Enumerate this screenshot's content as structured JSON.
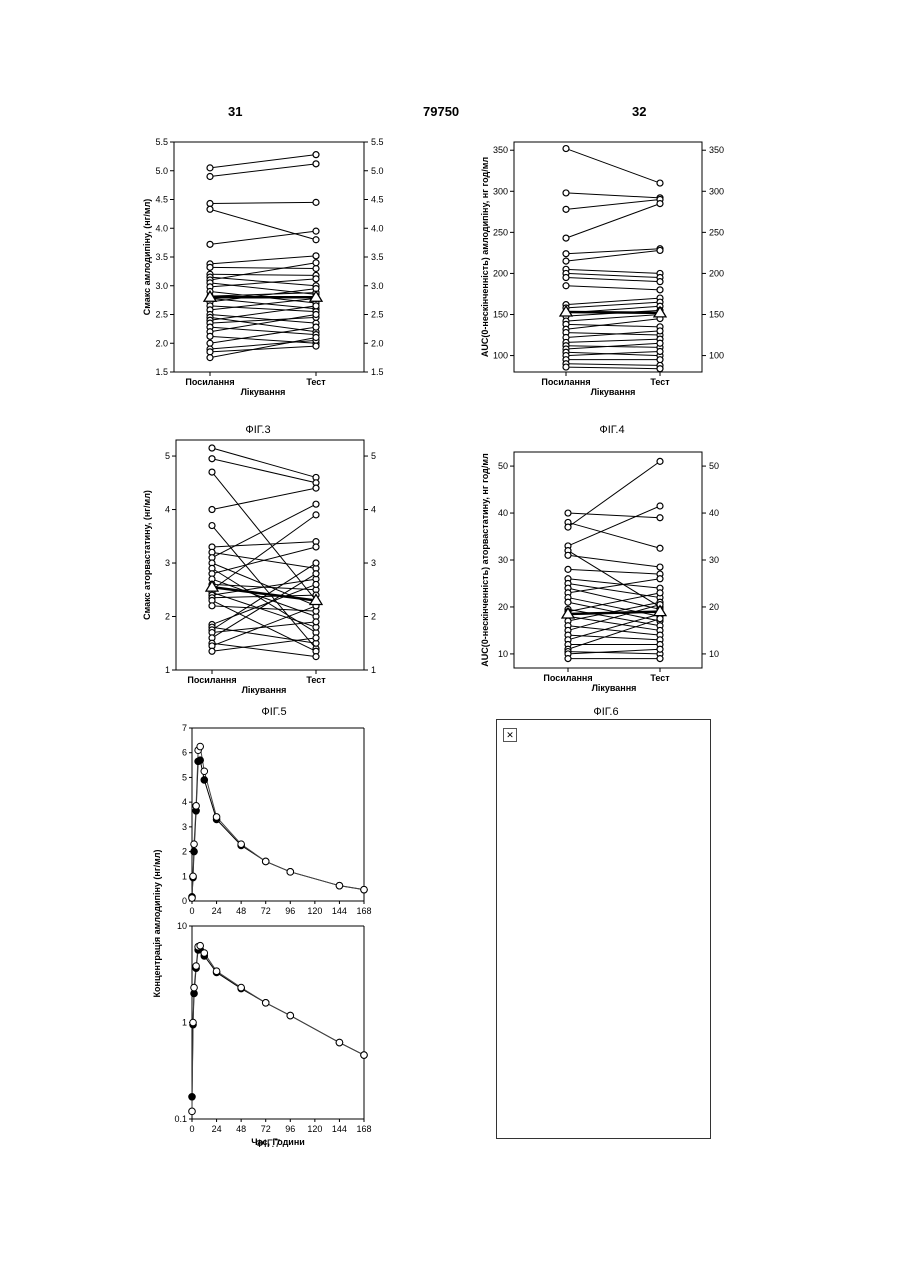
{
  "page_header": {
    "left_page": "31",
    "patent_number": "79750",
    "right_page": "32"
  },
  "chart_data": [
    {
      "type": "line",
      "figure_caption": "ФІГ.3",
      "ylabel": "Смакс амлодипіну, (нг/мл)",
      "xlabel": "Лікування",
      "categories": [
        "Посилання",
        "Тест"
      ],
      "ylim": [
        1.5,
        5.5
      ],
      "yticks": [
        "1.5",
        "2.0",
        "2.5",
        "3.0",
        "3.5",
        "4.0",
        "4.5",
        "5.0",
        "5.5"
      ],
      "ytick_values": [
        1.5,
        2.0,
        2.5,
        3.0,
        3.5,
        4.0,
        4.5,
        5.0,
        5.5
      ],
      "subjects": [
        [
          5.05,
          5.28
        ],
        [
          4.9,
          5.12
        ],
        [
          4.43,
          4.45
        ],
        [
          4.33,
          3.8
        ],
        [
          3.72,
          3.95
        ],
        [
          3.38,
          3.52
        ],
        [
          3.32,
          3.3
        ],
        [
          3.2,
          3.18
        ],
        [
          3.15,
          3.0
        ],
        [
          3.1,
          3.4
        ],
        [
          3.05,
          2.85
        ],
        [
          2.98,
          3.12
        ],
        [
          2.9,
          2.7
        ],
        [
          2.82,
          2.88
        ],
        [
          2.78,
          2.6
        ],
        [
          2.72,
          2.95
        ],
        [
          2.65,
          2.55
        ],
        [
          2.58,
          2.78
        ],
        [
          2.5,
          2.35
        ],
        [
          2.45,
          2.2
        ],
        [
          2.4,
          2.65
        ],
        [
          2.35,
          2.45
        ],
        [
          2.28,
          2.15
        ],
        [
          2.2,
          2.5
        ],
        [
          2.12,
          2.0
        ],
        [
          2.0,
          2.28
        ],
        [
          1.9,
          2.05
        ],
        [
          1.85,
          1.95
        ],
        [
          1.75,
          2.1
        ]
      ],
      "mean": [
        2.8,
        2.8
      ]
    },
    {
      "type": "line",
      "figure_caption": "ФІГ.4",
      "ylabel": "AUC(0-нескінченність) амлодипіну, нг год/мл",
      "xlabel": "Лікування",
      "categories": [
        "Посилання",
        "Тест"
      ],
      "ylim": [
        80,
        360
      ],
      "yticks": [
        "100",
        "150",
        "200",
        "250",
        "300",
        "350"
      ],
      "ytick_values": [
        100,
        150,
        200,
        250,
        300,
        350
      ],
      "subjects": [
        [
          352,
          310
        ],
        [
          298,
          292
        ],
        [
          278,
          290
        ],
        [
          243,
          285
        ],
        [
          224,
          230
        ],
        [
          215,
          228
        ],
        [
          205,
          200
        ],
        [
          200,
          195
        ],
        [
          195,
          190
        ],
        [
          185,
          180
        ],
        [
          162,
          170
        ],
        [
          158,
          165
        ],
        [
          152,
          160
        ],
        [
          148,
          155
        ],
        [
          142,
          150
        ],
        [
          138,
          135
        ],
        [
          132,
          145
        ],
        [
          128,
          125
        ],
        [
          122,
          130
        ],
        [
          116,
          120
        ],
        [
          112,
          110
        ],
        [
          108,
          115
        ],
        [
          104,
          100
        ],
        [
          100,
          105
        ],
        [
          95,
          95
        ],
        [
          90,
          88
        ],
        [
          86,
          84
        ]
      ],
      "mean": [
        153,
        152
      ]
    },
    {
      "type": "line",
      "figure_caption": "ФІГ.5",
      "ylabel": "Смакс аторвастатину, (нг/мл)",
      "xlabel": "Лікування",
      "categories": [
        "Посилання",
        "Тест"
      ],
      "ylim": [
        1,
        5.3
      ],
      "yticks": [
        "1",
        "2",
        "3",
        "4",
        "5"
      ],
      "ytick_values": [
        1,
        2,
        3,
        4,
        5
      ],
      "subjects": [
        [
          5.15,
          4.6
        ],
        [
          4.95,
          4.5
        ],
        [
          4.7,
          2.3
        ],
        [
          4.0,
          4.4
        ],
        [
          3.7,
          1.4
        ],
        [
          3.3,
          3.4
        ],
        [
          3.2,
          2.9
        ],
        [
          3.1,
          4.1
        ],
        [
          3.0,
          2.2
        ],
        [
          2.9,
          1.7
        ],
        [
          2.8,
          3.3
        ],
        [
          2.7,
          2.0
        ],
        [
          2.6,
          2.5
        ],
        [
          2.5,
          3.9
        ],
        [
          2.45,
          1.8
        ],
        [
          2.4,
          2.7
        ],
        [
          2.35,
          2.4
        ],
        [
          2.3,
          1.35
        ],
        [
          2.2,
          2.1
        ],
        [
          1.85,
          2.6
        ],
        [
          1.8,
          1.5
        ],
        [
          1.75,
          3.0
        ],
        [
          1.7,
          1.9
        ],
        [
          1.6,
          2.8
        ],
        [
          1.5,
          1.25
        ],
        [
          1.45,
          2.2
        ],
        [
          1.35,
          1.6
        ]
      ],
      "mean": [
        2.55,
        2.3
      ]
    },
    {
      "type": "line",
      "figure_caption": "ФІГ.6",
      "ylabel": "AUC(0-нескінченність) аторвастатину, нг год/мл",
      "xlabel": "Лікування",
      "categories": [
        "Посилання",
        "Тест"
      ],
      "ylim": [
        7,
        53
      ],
      "yticks": [
        "10",
        "20",
        "30",
        "40",
        "50"
      ],
      "ytick_values": [
        10,
        20,
        30,
        40,
        50
      ],
      "subjects": [
        [
          40,
          39
        ],
        [
          38,
          32.5
        ],
        [
          37,
          51
        ],
        [
          33,
          41.5
        ],
        [
          32,
          20
        ],
        [
          31,
          28.5
        ],
        [
          28,
          27
        ],
        [
          26,
          24
        ],
        [
          25,
          22
        ],
        [
          24,
          19.5
        ],
        [
          23,
          26
        ],
        [
          22,
          18
        ],
        [
          21,
          17
        ],
        [
          19.5,
          16
        ],
        [
          19,
          23
        ],
        [
          18,
          15
        ],
        [
          17,
          21
        ],
        [
          16,
          14
        ],
        [
          15,
          20.5
        ],
        [
          14,
          13
        ],
        [
          13,
          18.5
        ],
        [
          12,
          12
        ],
        [
          11,
          17.5
        ],
        [
          10.5,
          10
        ],
        [
          10,
          11
        ],
        [
          9,
          9
        ]
      ],
      "mean": [
        18.5,
        19
      ]
    },
    {
      "type": "line",
      "figure_caption": "ФІГ.7",
      "ylabel": "Концентрація амлодипіну (нг/мл)",
      "xlabel": "Час, Години",
      "xticks": [
        "0",
        "24",
        "48",
        "72",
        "96",
        "120",
        "144",
        "168"
      ],
      "xtick_values": [
        0,
        24,
        48,
        72,
        96,
        120,
        144,
        168
      ],
      "xlim": [
        0,
        168
      ],
      "linear_panel": {
        "ylim": [
          0,
          7
        ],
        "yticks": [
          "0",
          "1",
          "2",
          "3",
          "4",
          "5",
          "6",
          "7"
        ],
        "ytick_values": [
          0,
          1,
          2,
          3,
          4,
          5,
          6,
          7
        ]
      },
      "log_panel": {
        "ylim": [
          0.1,
          10
        ],
        "yticks": [
          "0.1",
          "1",
          "10"
        ],
        "ytick_values": [
          0.1,
          1,
          10
        ]
      },
      "x": [
        0,
        1,
        2,
        4,
        6,
        8,
        12,
        24,
        48,
        72,
        96,
        144,
        168
      ],
      "series": [
        {
          "marker": "filled",
          "values": [
            0.17,
            0.95,
            2.0,
            3.65,
            5.65,
            5.7,
            4.9,
            3.3,
            2.25,
            1.6,
            1.18,
            0.62,
            0.46
          ]
        },
        {
          "marker": "open",
          "values": [
            0.12,
            1.0,
            2.3,
            3.85,
            6.1,
            6.25,
            5.25,
            3.4,
            2.3,
            1.6,
            1.18,
            0.62,
            0.46
          ]
        }
      ]
    }
  ]
}
